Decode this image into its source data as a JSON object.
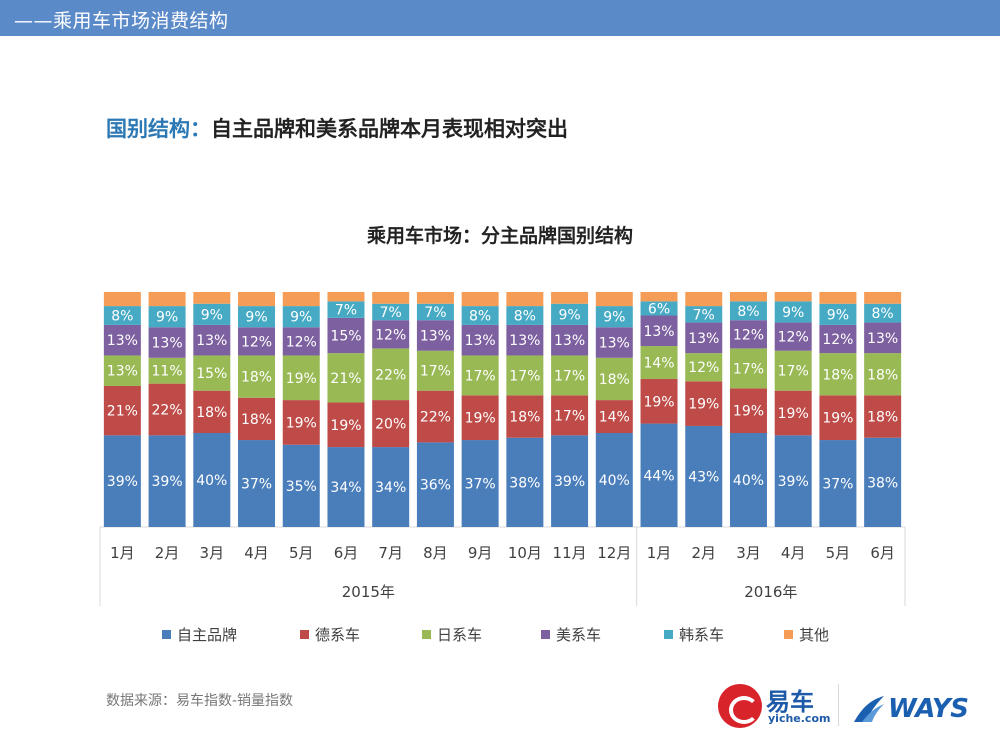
{
  "header": {
    "title": "——乘用车市场消费结构"
  },
  "headline": {
    "prefix": "国别结构：",
    "text": "自主品牌和美系品牌本月表现相对突出"
  },
  "source": "数据来源：易车指数-销量指数",
  "logos": {
    "yiche_cn": "易车",
    "yiche_en": "yiche.com",
    "ways": "WAYS"
  },
  "colors": {
    "自主品牌": "#4a7ebb",
    "德系车": "#be4b48",
    "日系车": "#98b954",
    "美系车": "#7d60a0",
    "韩系车": "#46aac5",
    "其他": "#f59d56"
  },
  "chart_data": {
    "type": "bar",
    "stacked": true,
    "normalized": true,
    "title": "乘用车市场：分主品牌国别结构",
    "categories": [
      "1月",
      "2月",
      "3月",
      "4月",
      "5月",
      "6月",
      "7月",
      "8月",
      "9月",
      "10月",
      "11月",
      "12月",
      "1月",
      "2月",
      "3月",
      "4月",
      "5月",
      "6月"
    ],
    "groups": [
      {
        "label": "2015年",
        "count": 12
      },
      {
        "label": "2016年",
        "count": 6
      }
    ],
    "series": [
      {
        "name": "自主品牌",
        "values": [
          39,
          39,
          40,
          37,
          35,
          34,
          34,
          36,
          37,
          38,
          39,
          40,
          44,
          43,
          40,
          39,
          37,
          38
        ]
      },
      {
        "name": "德系车",
        "values": [
          21,
          22,
          18,
          18,
          19,
          19,
          20,
          22,
          19,
          18,
          17,
          14,
          19,
          19,
          19,
          19,
          19,
          18
        ]
      },
      {
        "name": "日系车",
        "values": [
          13,
          11,
          15,
          18,
          19,
          21,
          22,
          17,
          17,
          17,
          17,
          18,
          14,
          12,
          17,
          17,
          18,
          18
        ]
      },
      {
        "name": "美系车",
        "values": [
          13,
          13,
          13,
          12,
          12,
          15,
          12,
          13,
          13,
          13,
          13,
          13,
          13,
          13,
          12,
          12,
          12,
          13
        ]
      },
      {
        "name": "韩系车",
        "values": [
          8,
          9,
          9,
          9,
          9,
          7,
          7,
          7,
          8,
          8,
          9,
          9,
          6,
          7,
          8,
          9,
          9,
          8
        ]
      },
      {
        "name": "其他",
        "values": [
          6,
          6,
          5,
          6,
          6,
          4,
          5,
          5,
          6,
          6,
          5,
          6,
          4,
          6,
          4,
          4,
          5,
          5
        ]
      }
    ],
    "label_format": "{v}%",
    "other_labels_shown": false,
    "legend_position": "bottom",
    "grid": false
  }
}
